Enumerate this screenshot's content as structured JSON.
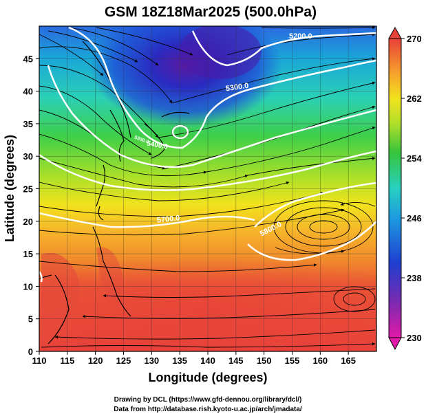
{
  "title": "GSM 18Z18Mar2025 (500.0hPa)",
  "xlabel": "Longitude (degrees)",
  "ylabel": "Latitude  (degrees)",
  "x_ticks": [
    "110",
    "115",
    "120",
    "125",
    "130",
    "135",
    "140",
    "145",
    "150",
    "155",
    "160",
    "165"
  ],
  "y_ticks": [
    "0",
    "5",
    "10",
    "15",
    "20",
    "25",
    "30",
    "35",
    "40",
    "45"
  ],
  "colorbar": {
    "ticks": [
      "230",
      "238",
      "246",
      "254",
      "262",
      "270"
    ],
    "min": 230,
    "max": 270
  },
  "contour_labels": [
    "5200.0",
    "5300.0",
    "5400.0",
    "5700.0",
    "5800.0",
    "5300.0"
  ],
  "colors": {
    "warm": "#e8413a",
    "orange": "#f08a2c",
    "yellow": "#f2e21d",
    "green": "#38c43b",
    "cyan": "#28c9c8",
    "blue": "#1f4fd8",
    "purple": "#7a2bb0",
    "contour": "#ffffff",
    "coast": "#000000"
  },
  "credits": {
    "line1": "Drawing by DCL (https://www.gfd-dennou.org/library/dcl/)",
    "line2": "Data from http://database.rish.kyoto-u.ac.jp/arch/jmadata/"
  }
}
